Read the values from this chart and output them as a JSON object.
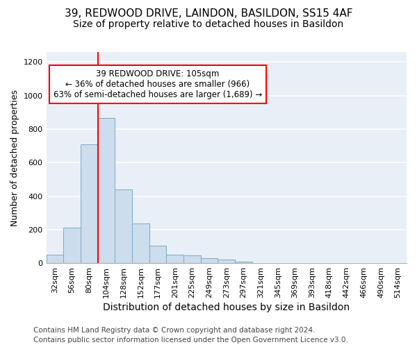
{
  "title": "39, REDWOOD DRIVE, LAINDON, BASILDON, SS15 4AF",
  "subtitle": "Size of property relative to detached houses in Basildon",
  "xlabel": "Distribution of detached houses by size in Basildon",
  "ylabel": "Number of detached properties",
  "bar_color": "#ccdded",
  "bar_edgecolor": "#7aacc8",
  "categories": [
    "32sqm",
    "56sqm",
    "80sqm",
    "104sqm",
    "128sqm",
    "152sqm",
    "177sqm",
    "201sqm",
    "225sqm",
    "249sqm",
    "273sqm",
    "297sqm",
    "321sqm",
    "345sqm",
    "369sqm",
    "393sqm",
    "418sqm",
    "442sqm",
    "466sqm",
    "490sqm",
    "514sqm"
  ],
  "values": [
    50,
    210,
    710,
    865,
    440,
    235,
    105,
    50,
    45,
    30,
    20,
    10,
    0,
    0,
    0,
    0,
    0,
    0,
    0,
    0,
    0
  ],
  "ylim": [
    0,
    1260
  ],
  "yticks": [
    0,
    200,
    400,
    600,
    800,
    1000,
    1200
  ],
  "annotation_line1": "39 REDWOOD DRIVE: 105sqm",
  "annotation_line2": "← 36% of detached houses are smaller (966)",
  "annotation_line3": "63% of semi-detached houses are larger (1,689) →",
  "annotation_box_color": "white",
  "annotation_box_edgecolor": "red",
  "vline_color": "red",
  "vline_bar_index": 3,
  "footnote1": "Contains HM Land Registry data © Crown copyright and database right 2024.",
  "footnote2": "Contains public sector information licensed under the Open Government Licence v3.0.",
  "background_color": "#e8eff6",
  "grid_color": "white",
  "title_fontsize": 11,
  "subtitle_fontsize": 10,
  "xlabel_fontsize": 10,
  "ylabel_fontsize": 9,
  "tick_fontsize": 8,
  "annotation_fontsize": 8.5,
  "footnote_fontsize": 7.5
}
